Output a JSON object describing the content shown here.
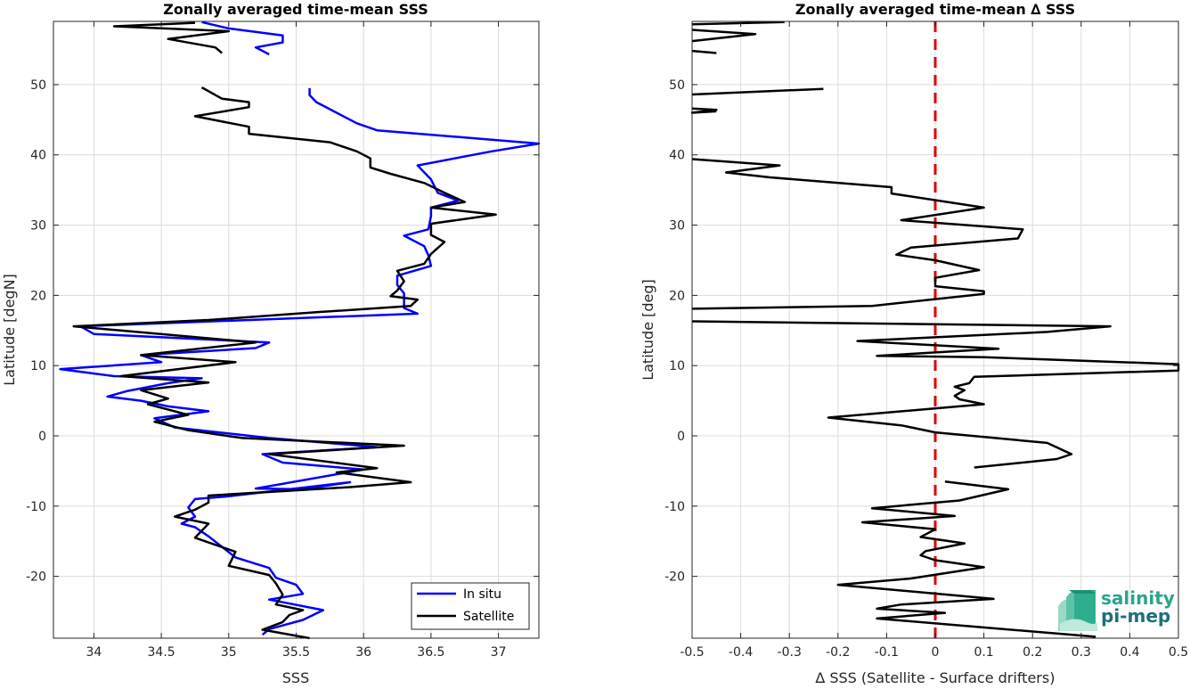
{
  "chart_data": [
    {
      "type": "line",
      "title": "Zonally averaged time-mean SSS",
      "xlabel": "SSS",
      "ylabel": "Latitude [degN]",
      "xlim": [
        33.7,
        37.3
      ],
      "ylim": [
        -28.8,
        59
      ],
      "xticks": [
        "34",
        "34.5",
        "35",
        "35.5",
        "36",
        "36.5",
        "37"
      ],
      "yticks": [
        "50",
        "40",
        "30",
        "20",
        "10",
        "0",
        "-10",
        "-20"
      ],
      "grid": true,
      "legend": {
        "position": "bottom-right",
        "entries": [
          "In situ",
          "Satellite"
        ]
      },
      "series": [
        {
          "name": "In situ",
          "color": "#0000ff",
          "segments": [
            [
              [
                35.25,
                -28.3
              ],
              [
                35.3,
                -27.5
              ],
              [
                35.55,
                -26.2
              ],
              [
                35.7,
                -24.8
              ],
              [
                35.3,
                -23.3
              ],
              [
                35.55,
                -22.5
              ],
              [
                35.5,
                -21.2
              ],
              [
                35.35,
                -20.2
              ],
              [
                35.3,
                -18.8
              ],
              [
                35.05,
                -17.3
              ],
              [
                34.95,
                -15.8
              ],
              [
                34.85,
                -14.3
              ],
              [
                34.75,
                -13
              ],
              [
                34.65,
                -12.5
              ],
              [
                34.75,
                -11.5
              ],
              [
                34.7,
                -10.2
              ],
              [
                34.75,
                -9
              ],
              [
                35,
                -8.6
              ],
              [
                35.9,
                -6.6
              ],
              [
                35.55,
                -7.6
              ],
              [
                35.2,
                -7.5
              ],
              [
                36.0,
                -4.8
              ],
              [
                35.4,
                -3.8
              ],
              [
                35.25,
                -2.6
              ],
              [
                36.1,
                -1.6
              ],
              [
                35.3,
                -0.3
              ],
              [
                34.6,
                1.2
              ],
              [
                34.45,
                2.5
              ],
              [
                34.85,
                3.5
              ],
              [
                34.55,
                4.2
              ],
              [
                34.35,
                5
              ],
              [
                34.1,
                5.6
              ],
              [
                34.25,
                6.4
              ],
              [
                34.55,
                7.5
              ],
              [
                34.8,
                8.2
              ],
              [
                34.15,
                8.5
              ],
              [
                33.75,
                9.5
              ],
              [
                34.5,
                10.5
              ],
              [
                34.35,
                11.5
              ],
              [
                35.2,
                12.5
              ],
              [
                35.3,
                13.3
              ],
              [
                34.0,
                14.5
              ],
              [
                33.9,
                15.6
              ],
              [
                36.4,
                17.4
              ],
              [
                36.3,
                18.2
              ],
              [
                36.3,
                20.3
              ],
              [
                36.25,
                21.5
              ],
              [
                36.25,
                22.8
              ],
              [
                36.5,
                24.2
              ],
              [
                36.48,
                25.7
              ],
              [
                36.45,
                27
              ],
              [
                36.3,
                28.5
              ],
              [
                36.48,
                29.4
              ],
              [
                36.5,
                31.3
              ],
              [
                36.5,
                32.5
              ],
              [
                36.7,
                33.5
              ],
              [
                36.55,
                34.6
              ],
              [
                36.5,
                36.5
              ],
              [
                36.4,
                38.5
              ],
              [
                36.95,
                40.5
              ],
              [
                37.3,
                41.6
              ],
              [
                36.1,
                43.5
              ],
              [
                35.95,
                44.5
              ],
              [
                35.8,
                46
              ],
              [
                35.65,
                47.5
              ],
              [
                35.6,
                48.5
              ],
              [
                35.6,
                49.5
              ]
            ],
            [
              [
                35.3,
                54.3
              ],
              [
                35.2,
                55.3
              ],
              [
                35.4,
                56
              ],
              [
                35.4,
                57
              ],
              [
                35.0,
                58
              ],
              [
                34.8,
                58.9
              ]
            ]
          ]
        },
        {
          "name": "Satellite",
          "color": "#000000",
          "segments": [
            [
              [
                35.6,
                -28.8
              ],
              [
                35.25,
                -27.6
              ],
              [
                35.4,
                -26.5
              ],
              [
                35.45,
                -25.5
              ],
              [
                35.55,
                -24.8
              ],
              [
                35.35,
                -24
              ],
              [
                35.4,
                -22.6
              ],
              [
                35.35,
                -21
              ],
              [
                35.3,
                -19.8
              ],
              [
                35.0,
                -18.5
              ],
              [
                35.05,
                -16.5
              ],
              [
                34.75,
                -14.5
              ],
              [
                34.85,
                -12.5
              ],
              [
                34.6,
                -11.5
              ],
              [
                34.75,
                -10.5
              ],
              [
                34.85,
                -9.5
              ],
              [
                34.85,
                -8.5
              ],
              [
                35.9,
                -7.3
              ],
              [
                36.35,
                -6.6
              ],
              [
                35.8,
                -5.2
              ],
              [
                36.1,
                -4.6
              ],
              [
                35.3,
                -2.6
              ],
              [
                36.3,
                -1.4
              ],
              [
                35.1,
                -0.3
              ],
              [
                34.7,
                0.8
              ],
              [
                34.45,
                2
              ],
              [
                34.7,
                3
              ],
              [
                34.4,
                4.5
              ],
              [
                34.55,
                5.3
              ],
              [
                34.35,
                6.5
              ],
              [
                34.85,
                7.6
              ],
              [
                34.2,
                8.5
              ],
              [
                35.05,
                10.5
              ],
              [
                34.35,
                11.5
              ],
              [
                35.2,
                13.3
              ],
              [
                33.85,
                15.6
              ],
              [
                34.85,
                16.5
              ],
              [
                35.65,
                17.6
              ],
              [
                36.35,
                18.5
              ],
              [
                36.4,
                19.4
              ],
              [
                36.2,
                19.9
              ],
              [
                36.25,
                20.7
              ],
              [
                36.3,
                22
              ],
              [
                36.25,
                23.5
              ],
              [
                36.45,
                24.5
              ],
              [
                36.5,
                25.9
              ],
              [
                36.6,
                27.6
              ],
              [
                36.5,
                28.6
              ],
              [
                36.5,
                29.4
              ],
              [
                36.5,
                30.2
              ],
              [
                36.98,
                31.5
              ],
              [
                36.5,
                32.5
              ],
              [
                36.75,
                33.3
              ],
              [
                36.6,
                34.6
              ],
              [
                36.45,
                36
              ],
              [
                36.2,
                37.3
              ],
              [
                36.05,
                38.2
              ],
              [
                36.05,
                39.5
              ],
              [
                35.95,
                40.5
              ],
              [
                35.75,
                41.8
              ],
              [
                35.15,
                43
              ],
              [
                35.15,
                44
              ],
              [
                34.75,
                45.5
              ],
              [
                35.15,
                46.8
              ],
              [
                35.15,
                47.5
              ],
              [
                34.95,
                48
              ],
              [
                34.8,
                49.6
              ]
            ],
            [
              [
                34.95,
                54.5
              ],
              [
                34.9,
                55.3
              ],
              [
                34.55,
                56.5
              ],
              [
                35.0,
                57.6
              ],
              [
                34.15,
                58.3
              ],
              [
                34.75,
                58.8
              ]
            ]
          ]
        }
      ]
    },
    {
      "type": "line",
      "title": "Zonally averaged time-mean ∆ SSS",
      "xlabel": "∆ SSS (Satellite - Surface drifters)",
      "ylabel": "Latitude [deg]",
      "xlim": [
        -0.5,
        0.5
      ],
      "ylim": [
        -28.8,
        59
      ],
      "xticks": [
        "-0.5",
        "-0.4",
        "-0.3",
        "-0.2",
        "-0.1",
        "0",
        "0.1",
        "0.2",
        "0.3",
        "0.4",
        "0.5"
      ],
      "yticks": [
        "50",
        "40",
        "30",
        "20",
        "10",
        "0",
        "-10",
        "-20"
      ],
      "grid": true,
      "reference_line": {
        "x": 0,
        "color": "#e00000",
        "style": "dashed"
      },
      "series": [
        {
          "name": "",
          "color": "#000000",
          "segments": [
            [
              [
                0.33,
                -28.6
              ],
              [
                -0.12,
                -26
              ],
              [
                0.02,
                -25.2
              ],
              [
                -0.12,
                -24.6
              ],
              [
                -0.07,
                -24
              ],
              [
                0.12,
                -23.2
              ],
              [
                -0.2,
                -21.2
              ],
              [
                -0.05,
                -20.3
              ],
              [
                0.1,
                -18.7
              ],
              [
                0.0,
                -17.7
              ],
              [
                -0.03,
                -17
              ],
              [
                -0.02,
                -16.4
              ],
              [
                0.06,
                -15.3
              ],
              [
                -0.03,
                -14.4
              ],
              [
                0.0,
                -13.3
              ],
              [
                -0.15,
                -12.3
              ],
              [
                0.04,
                -11.4
              ],
              [
                -0.13,
                -10.3
              ],
              [
                0.05,
                -9.2
              ],
              [
                0.15,
                -7.6
              ],
              [
                0.02,
                -6.5
              ]
            ],
            [
              [
                0.08,
                -4.5
              ],
              [
                0.25,
                -3.3
              ],
              [
                0.28,
                -2.6
              ],
              [
                0.23,
                -1
              ],
              [
                0.0,
                0.5
              ],
              [
                -0.07,
                1.5
              ],
              [
                -0.22,
                2.6
              ],
              [
                0.1,
                4.5
              ],
              [
                0.05,
                5.2
              ],
              [
                0.04,
                5.7
              ],
              [
                0.06,
                6.5
              ],
              [
                0.04,
                7
              ],
              [
                0.07,
                7.5
              ],
              [
                0.08,
                8.4
              ],
              [
                0.5,
                9.3
              ],
              [
                0.5,
                10.2
              ],
              [
                0.1,
                11.2
              ],
              [
                -0.12,
                11.4
              ],
              [
                0.13,
                12.4
              ],
              [
                -0.16,
                13.5
              ],
              [
                0.23,
                14.8
              ],
              [
                0.36,
                15.6
              ],
              [
                -0.5,
                16.3
              ]
            ],
            [
              [
                -0.5,
                18.1
              ],
              [
                -0.13,
                18.5
              ],
              [
                0.1,
                20.2
              ],
              [
                0.1,
                20.6
              ],
              [
                0.0,
                21.3
              ],
              [
                0.0,
                22.5
              ],
              [
                0.09,
                23.6
              ],
              [
                0.0,
                25
              ],
              [
                -0.08,
                25.8
              ],
              [
                -0.05,
                26.8
              ],
              [
                0.17,
                28.1
              ],
              [
                0.18,
                29.4
              ],
              [
                -0.07,
                30.7
              ],
              [
                0.1,
                32.5
              ],
              [
                -0.09,
                34.5
              ],
              [
                -0.09,
                35.4
              ],
              [
                -0.34,
                36.8
              ],
              [
                -0.43,
                37.5
              ],
              [
                -0.32,
                38.5
              ],
              [
                -0.5,
                39.4
              ]
            ],
            [
              [
                -0.5,
                46.6
              ],
              [
                -0.45,
                46.4
              ],
              [
                -0.5,
                46
              ],
              [
                -0.45,
                46.2
              ]
            ],
            [
              [
                -0.5,
                48.6
              ],
              [
                -0.23,
                49.4
              ]
            ],
            [
              [
                -0.45,
                54.5
              ],
              [
                -0.5,
                54.8
              ]
            ],
            [
              [
                -0.5,
                56.2
              ],
              [
                -0.37,
                57.2
              ],
              [
                -0.5,
                57.8
              ]
            ],
            [
              [
                -0.5,
                58.6
              ],
              [
                -0.31,
                58.9
              ]
            ]
          ]
        }
      ]
    }
  ],
  "logo": {
    "line1": "salinity",
    "line2": "pi-mep"
  }
}
